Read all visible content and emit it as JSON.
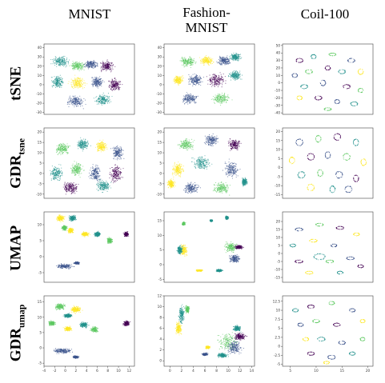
{
  "column_titles": [
    "MNIST",
    "Fashion-\nMNIST",
    "Coil-100"
  ],
  "row_labels": [
    {
      "main": "tSNE",
      "sub": ""
    },
    {
      "main": "GDR",
      "sub": "tsne"
    },
    {
      "main": "UMAP",
      "sub": ""
    },
    {
      "main": "GDR",
      "sub": "umap"
    }
  ],
  "colors": {
    "frame": "#444444",
    "tick_text": "#333333",
    "viridis": [
      "#440154",
      "#3b528b",
      "#21918c",
      "#5ec962",
      "#fde725"
    ]
  },
  "chart_data": [
    {
      "type": "scatter",
      "dataset": "MNIST",
      "method": "tSNE",
      "xlim": [
        -42,
        50
      ],
      "ylim": [
        -32,
        44
      ],
      "xticks": [],
      "yticks": [
        -30,
        -20,
        -10,
        0,
        10,
        20,
        30,
        40
      ],
      "clusters": [
        [
          -25,
          25,
          13,
          8,
          2
        ],
        [
          -8,
          20,
          11,
          7,
          3
        ],
        [
          6,
          22,
          10,
          7,
          1
        ],
        [
          22,
          20,
          11,
          8,
          0
        ],
        [
          -28,
          3,
          9,
          10,
          2
        ],
        [
          -8,
          2,
          12,
          10,
          4
        ],
        [
          12,
          3,
          9,
          9,
          1
        ],
        [
          30,
          0,
          10,
          10,
          0
        ],
        [
          -10,
          -18,
          12,
          9,
          1
        ],
        [
          18,
          -16,
          12,
          9,
          2
        ]
      ]
    },
    {
      "type": "scatter",
      "dataset": "Fashion-MNIST",
      "method": "tSNE",
      "xlim": [
        -45,
        50
      ],
      "ylim": [
        -32,
        44
      ],
      "xticks": [],
      "yticks": [
        -30,
        -20,
        -10,
        0,
        10,
        20,
        30,
        40
      ],
      "clusters": [
        [
          -20,
          25,
          12,
          8,
          3
        ],
        [
          0,
          26,
          10,
          7,
          4
        ],
        [
          18,
          26,
          10,
          7,
          1
        ],
        [
          30,
          30,
          8,
          6,
          2
        ],
        [
          -30,
          5,
          8,
          7,
          4
        ],
        [
          -12,
          5,
          11,
          9,
          1
        ],
        [
          10,
          5,
          14,
          11,
          0
        ],
        [
          30,
          10,
          10,
          8,
          2
        ],
        [
          -18,
          -15,
          12,
          8,
          1
        ],
        [
          15,
          -15,
          14,
          9,
          3
        ]
      ]
    },
    {
      "type": "scatter",
      "dataset": "Coil-100",
      "method": "tSNE",
      "xlim": [
        -48,
        48
      ],
      "ylim": [
        -42,
        52
      ],
      "xticks": [],
      "yticks": [
        -40,
        -30,
        -20,
        -10,
        0,
        10,
        20,
        30,
        40,
        50
      ],
      "clusters": [
        [
          -30,
          30,
          4,
          3,
          0
        ],
        [
          -15,
          35,
          3,
          3,
          2
        ],
        [
          5,
          38,
          4,
          2,
          3
        ],
        [
          25,
          30,
          4,
          3,
          1
        ],
        [
          35,
          15,
          3,
          4,
          4
        ],
        [
          -35,
          10,
          3,
          3,
          1
        ],
        [
          -20,
          15,
          4,
          3,
          3
        ],
        [
          0,
          20,
          3,
          3,
          0
        ],
        [
          15,
          15,
          4,
          3,
          2
        ],
        [
          -25,
          -5,
          4,
          3,
          2
        ],
        [
          -5,
          0,
          3,
          4,
          1
        ],
        [
          20,
          -5,
          4,
          3,
          0
        ],
        [
          35,
          -10,
          3,
          3,
          3
        ],
        [
          -30,
          -20,
          3,
          3,
          4
        ],
        [
          -10,
          -20,
          4,
          3,
          0
        ],
        [
          10,
          -25,
          3,
          3,
          1
        ],
        [
          28,
          -28,
          4,
          3,
          2
        ],
        [
          0,
          -35,
          4,
          2,
          3
        ]
      ]
    },
    {
      "type": "scatter",
      "dataset": "MNIST",
      "method": "GDR_tsne",
      "xlim": [
        -40,
        48
      ],
      "ylim": [
        -12,
        22
      ],
      "xticks": [],
      "yticks": [
        -10,
        -5,
        0,
        5,
        10,
        15,
        20
      ],
      "clusters": [
        [
          -22,
          12,
          10,
          4,
          3
        ],
        [
          -2,
          14,
          9,
          4,
          2
        ],
        [
          16,
          13,
          8,
          4,
          4
        ],
        [
          32,
          10,
          8,
          5,
          1
        ],
        [
          -28,
          0,
          9,
          5,
          2
        ],
        [
          -8,
          2,
          9,
          5,
          3
        ],
        [
          10,
          0,
          8,
          6,
          1
        ],
        [
          30,
          0,
          9,
          6,
          0
        ],
        [
          -14,
          -7,
          11,
          4,
          0
        ],
        [
          18,
          -6,
          10,
          4,
          2
        ]
      ]
    },
    {
      "type": "scatter",
      "dataset": "Fashion-MNIST",
      "method": "GDR_tsne",
      "xlim": [
        -42,
        48
      ],
      "ylim": [
        -12,
        22
      ],
      "xticks": [],
      "yticks": [
        -10,
        -5,
        0,
        5,
        10,
        15,
        20
      ],
      "clusters": [
        [
          -20,
          14,
          11,
          4,
          3
        ],
        [
          5,
          16,
          10,
          4,
          1
        ],
        [
          28,
          14,
          9,
          4,
          0
        ],
        [
          -28,
          2,
          9,
          5,
          4
        ],
        [
          -5,
          5,
          13,
          5,
          2
        ],
        [
          25,
          2,
          11,
          6,
          1
        ],
        [
          -15,
          -7,
          12,
          4,
          1
        ],
        [
          15,
          -7,
          12,
          4,
          3
        ],
        [
          -35,
          -5,
          5,
          3,
          4
        ],
        [
          38,
          -4,
          4,
          3,
          2
        ]
      ]
    },
    {
      "type": "scatter",
      "dataset": "Coil-100",
      "method": "GDR_tsne",
      "xlim": [
        -48,
        48
      ],
      "ylim": [
        -17,
        22
      ],
      "xticks": [],
      "yticks": [
        -15,
        -10,
        -5,
        0,
        5,
        10,
        15,
        20
      ],
      "clusters": [
        [
          -30,
          14,
          4,
          2,
          1
        ],
        [
          -10,
          16,
          3,
          2,
          3
        ],
        [
          10,
          17,
          4,
          2,
          0
        ],
        [
          30,
          14,
          3,
          2,
          2
        ],
        [
          -38,
          4,
          3,
          2,
          4
        ],
        [
          -18,
          6,
          4,
          2,
          0
        ],
        [
          0,
          7,
          3,
          2,
          1
        ],
        [
          20,
          6,
          4,
          2,
          3
        ],
        [
          38,
          3,
          3,
          2,
          4
        ],
        [
          -28,
          -4,
          4,
          2,
          2
        ],
        [
          -8,
          -3,
          3,
          2,
          3
        ],
        [
          12,
          -4,
          4,
          2,
          1
        ],
        [
          30,
          -6,
          3,
          2,
          0
        ],
        [
          -18,
          -11,
          4,
          2,
          4
        ],
        [
          5,
          -12,
          3,
          2,
          2
        ],
        [
          22,
          -12,
          4,
          2,
          1
        ]
      ]
    },
    {
      "type": "scatter",
      "dataset": "MNIST",
      "method": "UMAP",
      "xlim": [
        -8,
        14
      ],
      "ylim": [
        -8,
        14
      ],
      "xticks": [],
      "yticks": [
        -5,
        0,
        5,
        10
      ],
      "clusters": [
        [
          -4,
          12,
          1.4,
          1.5,
          4
        ],
        [
          -1,
          12,
          1.3,
          1.3,
          2
        ],
        [
          -3,
          9,
          1,
          1.2,
          3
        ],
        [
          -1.5,
          8.2,
          1,
          1.2,
          4
        ],
        [
          2,
          7,
          1.4,
          1,
          4
        ],
        [
          5,
          7,
          1.2,
          1.2,
          2
        ],
        [
          8,
          5,
          1,
          1.4,
          3
        ],
        [
          12,
          7,
          0.8,
          1,
          0
        ],
        [
          -3,
          -3,
          3,
          1.1,
          1
        ],
        [
          0,
          -2,
          1,
          0.6,
          1
        ]
      ]
    },
    {
      "type": "scatter",
      "dataset": "Fashion-MNIST",
      "method": "UMAP",
      "xlim": [
        -5,
        18
      ],
      "ylim": [
        -6,
        18
      ],
      "xticks": [],
      "yticks": [
        -5,
        0,
        5,
        10,
        15
      ],
      "clusters": [
        [
          0,
          14,
          0.6,
          0.8,
          3
        ],
        [
          7,
          15,
          0.5,
          0.5,
          2
        ],
        [
          11,
          16,
          0.6,
          0.8,
          2
        ],
        [
          0,
          5,
          1.4,
          3,
          4
        ],
        [
          -1,
          5,
          1,
          2,
          2
        ],
        [
          4,
          -2,
          1.2,
          0.5,
          4
        ],
        [
          12,
          6,
          2.5,
          2.5,
          3
        ],
        [
          13,
          2,
          2,
          2,
          1
        ],
        [
          14,
          6,
          1.5,
          1,
          0
        ],
        [
          9,
          -2,
          1.2,
          0.7,
          2
        ]
      ]
    },
    {
      "type": "scatter",
      "dataset": "Coil-100",
      "method": "UMAP",
      "xlim": [
        -18,
        26
      ],
      "ylim": [
        -18,
        26
      ],
      "xticks": [],
      "yticks": [
        -15,
        -10,
        -5,
        0,
        5,
        10,
        15,
        20
      ],
      "clusters": [
        [
          -10,
          15,
          2,
          1,
          1
        ],
        [
          0,
          18,
          2,
          1,
          3
        ],
        [
          10,
          16,
          2,
          1,
          0
        ],
        [
          18,
          12,
          1.5,
          1,
          4
        ],
        [
          -13,
          5,
          1.5,
          1,
          2
        ],
        [
          -3,
          8,
          2,
          1,
          4
        ],
        [
          7,
          5,
          1.5,
          1,
          1
        ],
        [
          -10,
          -5,
          2,
          1,
          0
        ],
        [
          0,
          -2,
          3,
          2,
          2
        ],
        [
          5,
          -5,
          2,
          1,
          3
        ],
        [
          15,
          -3,
          2,
          1,
          1
        ],
        [
          -5,
          -12,
          2,
          1,
          4
        ],
        [
          10,
          -12,
          1.5,
          1,
          2
        ],
        [
          20,
          -8,
          1.5,
          1,
          0
        ]
      ]
    },
    {
      "type": "scatter",
      "dataset": "MNIST",
      "method": "GDR_umap",
      "xlim": [
        -4,
        13
      ],
      "ylim": [
        -6,
        17
      ],
      "xticks": [
        -4,
        -2,
        0,
        2,
        4,
        6,
        8,
        10,
        12
      ],
      "yticks": [
        -5,
        0,
        5,
        10,
        15
      ],
      "clusters": [
        [
          -1,
          13.5,
          1.4,
          1.5,
          3
        ],
        [
          2,
          12.5,
          1.5,
          1.6,
          4
        ],
        [
          0.5,
          10.5,
          1.2,
          1,
          2
        ],
        [
          -2.5,
          8,
          1,
          1.2,
          3
        ],
        [
          0.5,
          6.2,
          1,
          1,
          4
        ],
        [
          3.5,
          7.5,
          1.2,
          1.3,
          2
        ],
        [
          5.5,
          6,
          1,
          1.4,
          3
        ],
        [
          11.5,
          8,
          0.9,
          1.2,
          0
        ],
        [
          -0.5,
          -1,
          2.5,
          1.2,
          1
        ],
        [
          2,
          -3,
          0.8,
          0.6,
          1
        ]
      ]
    },
    {
      "type": "scatter",
      "dataset": "Fashion-MNIST",
      "method": "GDR_umap",
      "xlim": [
        -1,
        14.5
      ],
      "ylim": [
        -1,
        12
      ],
      "xticks": [
        0,
        2,
        4,
        6,
        8,
        10,
        12,
        14
      ],
      "yticks": [
        0,
        2,
        4,
        6,
        8,
        10,
        12
      ],
      "clusters": [
        [
          1.5,
          6,
          0.8,
          1.8,
          4
        ],
        [
          2,
          8.5,
          0.7,
          2.4,
          2
        ],
        [
          3,
          9.5,
          0.5,
          1,
          3
        ],
        [
          6.5,
          2.5,
          0.6,
          0.4,
          4
        ],
        [
          10,
          3.5,
          2.5,
          2.4,
          3
        ],
        [
          11,
          2.5,
          2,
          2,
          1
        ],
        [
          12,
          4.5,
          1.5,
          1,
          0
        ],
        [
          11.5,
          6,
          1,
          0.8,
          2
        ],
        [
          9,
          1,
          1.2,
          0.6,
          2
        ],
        [
          6,
          1.2,
          0.7,
          0.4,
          1
        ]
      ]
    },
    {
      "type": "scatter",
      "dataset": "Coil-100",
      "method": "GDR_umap",
      "xlim": [
        3.5,
        21
      ],
      "ylim": [
        -5.5,
        14
      ],
      "xticks": [
        5,
        10,
        15,
        20
      ],
      "yticks": [
        -5.0,
        -2.5,
        0.0,
        2.5,
        5.0,
        7.5,
        10.0,
        12.5
      ],
      "clusters": [
        [
          6,
          10,
          0.6,
          0.5,
          2
        ],
        [
          9,
          11,
          0.7,
          0.5,
          0
        ],
        [
          13,
          12,
          0.6,
          0.5,
          3
        ],
        [
          17,
          10,
          0.6,
          0.5,
          1
        ],
        [
          19,
          7,
          0.5,
          0.5,
          4
        ],
        [
          7,
          6,
          0.6,
          0.5,
          1
        ],
        [
          10,
          7,
          0.7,
          0.5,
          3
        ],
        [
          14,
          6,
          0.7,
          0.5,
          0
        ],
        [
          8,
          2,
          0.6,
          0.5,
          4
        ],
        [
          11,
          2,
          0.8,
          0.6,
          2
        ],
        [
          15,
          1,
          0.7,
          0.5,
          1
        ],
        [
          19,
          2,
          0.5,
          0.5,
          3
        ],
        [
          9,
          -2,
          0.7,
          0.5,
          0
        ],
        [
          13,
          -3,
          0.8,
          0.6,
          1
        ],
        [
          17,
          -2,
          0.6,
          0.5,
          2
        ],
        [
          12,
          -4.5,
          0.6,
          0.4,
          4
        ]
      ]
    }
  ]
}
